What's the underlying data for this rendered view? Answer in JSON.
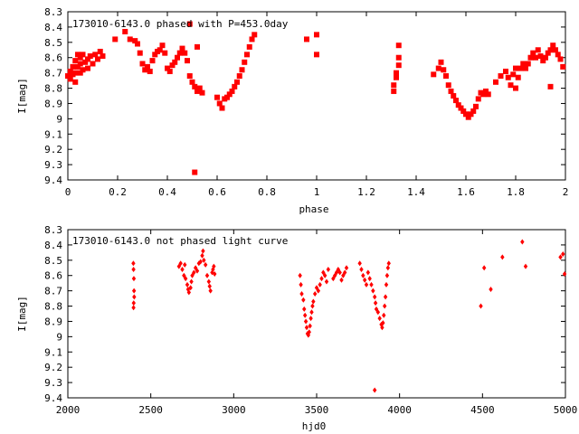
{
  "chart_data": [
    {
      "type": "scatter",
      "title": "173010-6143.0 phased with P=453.0day",
      "xlabel": "phase",
      "ylabel": "I[mag]",
      "xlim": [
        0,
        2
      ],
      "ylim": [
        8.3,
        9.4
      ],
      "y_inverted": true,
      "grid": false,
      "marker": "square",
      "color": "#ff0000",
      "xticks": [
        "0",
        "0.2",
        "0.4",
        "0.6",
        "0.8",
        "1",
        "1.2",
        "1.4",
        "1.6",
        "1.8",
        "2"
      ],
      "yticks": [
        "8.3",
        "8.4",
        "8.5",
        "8.6",
        "8.7",
        "8.8",
        "8.9",
        "9",
        "9.1",
        "9.2",
        "9.3",
        "9.4"
      ],
      "points": [
        [
          0.0,
          8.72
        ],
        [
          0.01,
          8.69
        ],
        [
          0.01,
          8.74
        ],
        [
          0.02,
          8.66
        ],
        [
          0.02,
          8.71
        ],
        [
          0.03,
          8.62
        ],
        [
          0.03,
          8.7
        ],
        [
          0.04,
          8.58
        ],
        [
          0.04,
          8.66
        ],
        [
          0.05,
          8.64
        ],
        [
          0.05,
          8.6
        ],
        [
          0.06,
          8.68
        ],
        [
          0.06,
          8.58
        ],
        [
          0.07,
          8.63
        ],
        [
          0.08,
          8.61
        ],
        [
          0.08,
          8.67
        ],
        [
          0.09,
          8.59
        ],
        [
          0.1,
          8.64
        ],
        [
          0.11,
          8.58
        ],
        [
          0.12,
          8.61
        ],
        [
          0.13,
          8.56
        ],
        [
          0.14,
          8.59
        ],
        [
          0.05,
          8.7
        ],
        [
          0.03,
          8.76
        ],
        [
          0.19,
          8.48
        ],
        [
          0.23,
          8.43
        ],
        [
          0.25,
          8.48
        ],
        [
          0.27,
          8.49
        ],
        [
          0.28,
          8.51
        ],
        [
          0.29,
          8.57
        ],
        [
          0.3,
          8.64
        ],
        [
          0.31,
          8.68
        ],
        [
          0.32,
          8.66
        ],
        [
          0.33,
          8.69
        ],
        [
          0.34,
          8.62
        ],
        [
          0.35,
          8.58
        ],
        [
          0.36,
          8.56
        ],
        [
          0.37,
          8.55
        ],
        [
          0.38,
          8.52
        ],
        [
          0.39,
          8.57
        ],
        [
          0.4,
          8.67
        ],
        [
          0.41,
          8.69
        ],
        [
          0.42,
          8.65
        ],
        [
          0.43,
          8.63
        ],
        [
          0.44,
          8.6
        ],
        [
          0.45,
          8.57
        ],
        [
          0.46,
          8.54
        ],
        [
          0.47,
          8.57
        ],
        [
          0.48,
          8.62
        ],
        [
          0.49,
          8.38
        ],
        [
          0.49,
          8.72
        ],
        [
          0.5,
          8.76
        ],
        [
          0.51,
          8.79
        ],
        [
          0.52,
          8.82
        ],
        [
          0.53,
          8.8
        ],
        [
          0.54,
          8.83
        ],
        [
          0.52,
          8.53
        ],
        [
          0.51,
          9.35
        ],
        [
          0.6,
          8.86
        ],
        [
          0.61,
          8.9
        ],
        [
          0.62,
          8.93
        ],
        [
          0.63,
          8.87
        ],
        [
          0.64,
          8.86
        ],
        [
          0.65,
          8.84
        ],
        [
          0.66,
          8.82
        ],
        [
          0.67,
          8.79
        ],
        [
          0.68,
          8.76
        ],
        [
          0.69,
          8.72
        ],
        [
          0.7,
          8.68
        ],
        [
          0.71,
          8.63
        ],
        [
          0.72,
          8.58
        ],
        [
          0.73,
          8.53
        ],
        [
          0.74,
          8.48
        ],
        [
          0.75,
          8.45
        ],
        [
          0.96,
          8.48
        ],
        [
          1.0,
          8.45
        ],
        [
          1.0,
          8.58
        ],
        [
          1.31,
          8.82
        ],
        [
          1.31,
          8.78
        ],
        [
          1.32,
          8.73
        ],
        [
          1.32,
          8.7
        ],
        [
          1.33,
          8.65
        ],
        [
          1.33,
          8.6
        ],
        [
          1.33,
          8.52
        ],
        [
          1.47,
          8.71
        ],
        [
          1.49,
          8.67
        ],
        [
          1.5,
          8.63
        ],
        [
          1.51,
          8.68
        ],
        [
          1.52,
          8.72
        ],
        [
          1.53,
          8.78
        ],
        [
          1.54,
          8.82
        ],
        [
          1.55,
          8.85
        ],
        [
          1.56,
          8.88
        ],
        [
          1.57,
          8.91
        ],
        [
          1.58,
          8.93
        ],
        [
          1.59,
          8.95
        ],
        [
          1.6,
          8.97
        ],
        [
          1.61,
          8.99
        ],
        [
          1.62,
          8.97
        ],
        [
          1.63,
          8.95
        ],
        [
          1.64,
          8.92
        ],
        [
          1.65,
          8.87
        ],
        [
          1.66,
          8.83
        ],
        [
          1.67,
          8.84
        ],
        [
          1.68,
          8.82
        ],
        [
          1.69,
          8.84
        ],
        [
          1.72,
          8.76
        ],
        [
          1.74,
          8.72
        ],
        [
          1.76,
          8.69
        ],
        [
          1.77,
          8.73
        ],
        [
          1.78,
          8.78
        ],
        [
          1.79,
          8.71
        ],
        [
          1.8,
          8.8
        ],
        [
          1.81,
          8.73
        ],
        [
          1.82,
          8.67
        ],
        [
          1.83,
          8.64
        ],
        [
          1.84,
          8.67
        ],
        [
          1.85,
          8.64
        ],
        [
          1.86,
          8.6
        ],
        [
          1.87,
          8.57
        ],
        [
          1.88,
          8.6
        ],
        [
          1.89,
          8.55
        ],
        [
          1.9,
          8.59
        ],
        [
          1.91,
          8.62
        ],
        [
          1.92,
          8.6
        ],
        [
          1.93,
          8.57
        ],
        [
          1.94,
          8.55
        ],
        [
          1.95,
          8.52
        ],
        [
          1.96,
          8.55
        ],
        [
          1.97,
          8.58
        ],
        [
          1.98,
          8.61
        ],
        [
          1.99,
          8.66
        ],
        [
          1.94,
          8.79
        ],
        [
          1.8,
          8.67
        ]
      ]
    },
    {
      "type": "scatter",
      "title": "173010-6143.0 not phased light curve",
      "xlabel": "hjd0",
      "ylabel": "I[mag]",
      "xlim": [
        2000,
        5000
      ],
      "ylim": [
        8.3,
        9.4
      ],
      "y_inverted": true,
      "grid": false,
      "marker": "diamond",
      "color": "#ff0000",
      "xticks": [
        "2000",
        "2500",
        "3000",
        "3500",
        "4000",
        "4500",
        "5000"
      ],
      "yticks": [
        "8.3",
        "8.4",
        "8.5",
        "8.6",
        "8.7",
        "8.8",
        "8.9",
        "9",
        "9.1",
        "9.2",
        "9.3",
        "9.4"
      ],
      "points": [
        [
          2395,
          8.52
        ],
        [
          2396,
          8.56
        ],
        [
          2398,
          8.62
        ],
        [
          2399,
          8.7
        ],
        [
          2400,
          8.74
        ],
        [
          2397,
          8.78
        ],
        [
          2396,
          8.81
        ],
        [
          2670,
          8.54
        ],
        [
          2680,
          8.52
        ],
        [
          2690,
          8.56
        ],
        [
          2700,
          8.6
        ],
        [
          2705,
          8.53
        ],
        [
          2710,
          8.62
        ],
        [
          2720,
          8.66
        ],
        [
          2725,
          8.69
        ],
        [
          2730,
          8.71
        ],
        [
          2740,
          8.68
        ],
        [
          2745,
          8.64
        ],
        [
          2750,
          8.6
        ],
        [
          2760,
          8.58
        ],
        [
          2770,
          8.55
        ],
        [
          2780,
          8.57
        ],
        [
          2790,
          8.52
        ],
        [
          2800,
          8.51
        ],
        [
          2810,
          8.47
        ],
        [
          2815,
          8.44
        ],
        [
          2820,
          8.5
        ],
        [
          2830,
          8.53
        ],
        [
          2840,
          8.6
        ],
        [
          2850,
          8.64
        ],
        [
          2855,
          8.67
        ],
        [
          2860,
          8.7
        ],
        [
          2870,
          8.58
        ],
        [
          2875,
          8.56
        ],
        [
          2880,
          8.54
        ],
        [
          2885,
          8.59
        ],
        [
          3400,
          8.6
        ],
        [
          3405,
          8.66
        ],
        [
          3410,
          8.72
        ],
        [
          3420,
          8.76
        ],
        [
          3425,
          8.82
        ],
        [
          3430,
          8.86
        ],
        [
          3435,
          8.9
        ],
        [
          3440,
          8.94
        ],
        [
          3445,
          8.98
        ],
        [
          3450,
          8.99
        ],
        [
          3455,
          8.97
        ],
        [
          3460,
          8.93
        ],
        [
          3465,
          8.88
        ],
        [
          3470,
          8.84
        ],
        [
          3475,
          8.8
        ],
        [
          3480,
          8.77
        ],
        [
          3490,
          8.72
        ],
        [
          3500,
          8.68
        ],
        [
          3510,
          8.7
        ],
        [
          3520,
          8.66
        ],
        [
          3530,
          8.62
        ],
        [
          3540,
          8.58
        ],
        [
          3550,
          8.6
        ],
        [
          3560,
          8.64
        ],
        [
          3570,
          8.56
        ],
        [
          3600,
          8.62
        ],
        [
          3610,
          8.6
        ],
        [
          3620,
          8.58
        ],
        [
          3630,
          8.56
        ],
        [
          3640,
          8.58
        ],
        [
          3650,
          8.63
        ],
        [
          3660,
          8.6
        ],
        [
          3670,
          8.58
        ],
        [
          3680,
          8.55
        ],
        [
          3760,
          8.52
        ],
        [
          3770,
          8.56
        ],
        [
          3780,
          8.6
        ],
        [
          3790,
          8.63
        ],
        [
          3800,
          8.66
        ],
        [
          3810,
          8.58
        ],
        [
          3820,
          8.62
        ],
        [
          3830,
          8.66
        ],
        [
          3840,
          8.7
        ],
        [
          3850,
          8.74
        ],
        [
          3855,
          8.78
        ],
        [
          3860,
          8.82
        ],
        [
          3870,
          8.84
        ],
        [
          3880,
          8.88
        ],
        [
          3890,
          8.92
        ],
        [
          3895,
          8.94
        ],
        [
          3900,
          8.91
        ],
        [
          3905,
          8.86
        ],
        [
          3910,
          8.8
        ],
        [
          3915,
          8.74
        ],
        [
          3920,
          8.66
        ],
        [
          3925,
          8.6
        ],
        [
          3930,
          8.55
        ],
        [
          3935,
          8.52
        ],
        [
          3850,
          9.35
        ],
        [
          4490,
          8.8
        ],
        [
          4510,
          8.55
        ],
        [
          4550,
          8.69
        ],
        [
          4620,
          8.48
        ],
        [
          4740,
          8.38
        ],
        [
          4760,
          8.54
        ],
        [
          4970,
          8.48
        ],
        [
          4985,
          8.46
        ],
        [
          4995,
          8.59
        ]
      ]
    }
  ]
}
